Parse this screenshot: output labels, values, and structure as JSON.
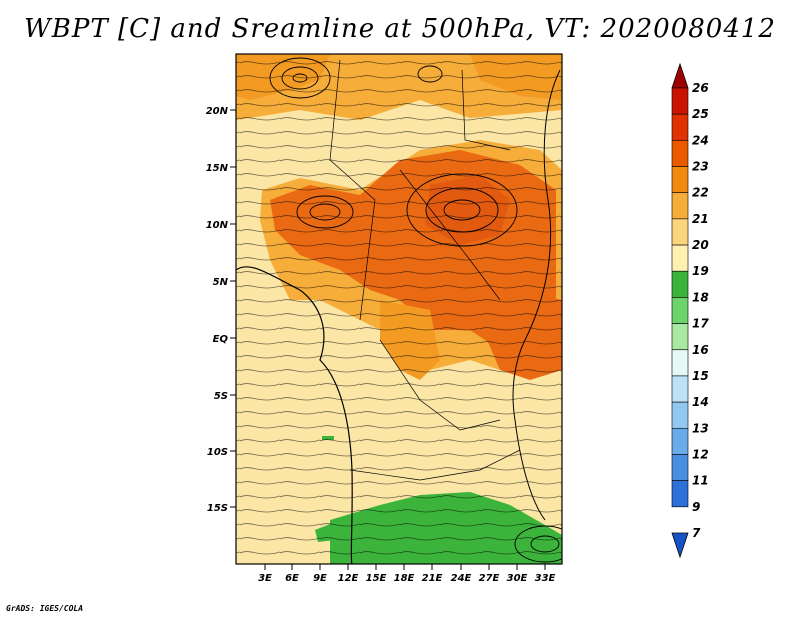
{
  "title": "WBPT [C] and Sreamline at 500hPa, VT: 2020080412",
  "credit": "GrADS: IGES/COLA",
  "map": {
    "lat_labels": [
      "20N",
      "15N",
      "10N",
      "5N",
      "EQ",
      "5S",
      "10S",
      "15S"
    ],
    "lon_labels": [
      "3E",
      "6E",
      "9E",
      "12E",
      "15E",
      "18E",
      "21E",
      "24E",
      "27E",
      "30E",
      "33E"
    ]
  },
  "colorbar": {
    "labels": [
      "26",
      "25",
      "24",
      "23",
      "22",
      "21",
      "20",
      "19",
      "18",
      "17",
      "16",
      "15",
      "14",
      "13",
      "12",
      "11",
      "9",
      "7"
    ],
    "colors": [
      "#a00000",
      "#c81400",
      "#e03200",
      "#ec5a00",
      "#f08a10",
      "#f6ad3a",
      "#fbd57c",
      "#fdf0b0",
      "#3cb43c",
      "#6cd26c",
      "#a8e8a0",
      "#e6f8f4",
      "#bde2f8",
      "#92c8f0",
      "#6aacea",
      "#4a8ee0",
      "#2c70d8",
      "#1852c8"
    ]
  },
  "legend_colors": {
    "green": "#3cb43c",
    "light_yellow": "#fbe6a6",
    "orange": "#f39a22",
    "deep_orange": "#ea6a14"
  }
}
